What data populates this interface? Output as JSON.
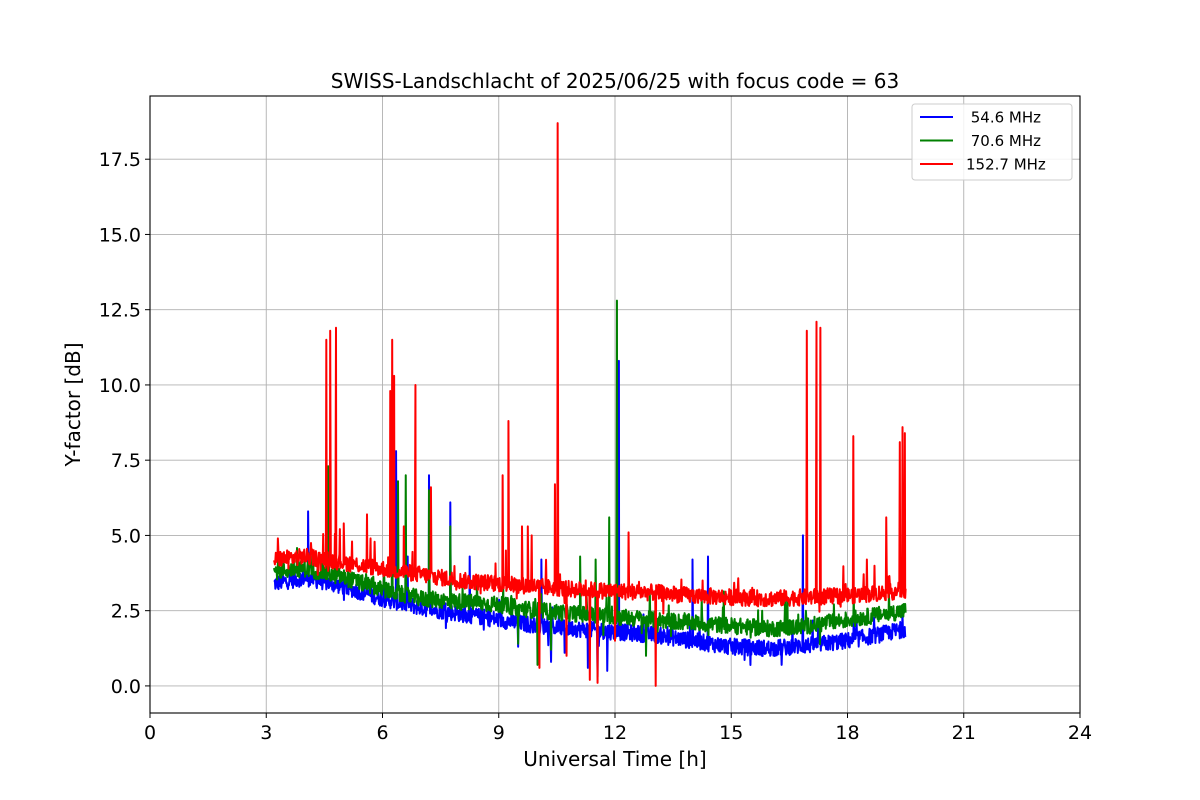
{
  "chart_data": {
    "type": "line",
    "title": "SWISS-Landschlacht of 2025/06/25 with focus code = 63",
    "xlabel": "Universal Time [h]",
    "ylabel": "Y-factor [dB]",
    "xlim": [
      0,
      24
    ],
    "ylim": [
      -0.9,
      19.6
    ],
    "xticks": [
      0,
      3,
      6,
      9,
      12,
      15,
      18,
      21,
      24
    ],
    "xtick_labels": [
      "0",
      "3",
      "6",
      "9",
      "12",
      "15",
      "18",
      "21",
      "24"
    ],
    "yticks": [
      0.0,
      2.5,
      5.0,
      7.5,
      10.0,
      12.5,
      15.0,
      17.5
    ],
    "ytick_labels": [
      "0.0",
      "2.5",
      "5.0",
      "7.5",
      "10.0",
      "12.5",
      "15.0",
      "17.5"
    ],
    "grid": true,
    "legend_position": "top-right",
    "series": [
      {
        "name": " 54.6 MHz",
        "color": "#0000ff",
        "baseline": [
          [
            3.2,
            3.4
          ],
          [
            4.0,
            3.6
          ],
          [
            5.0,
            3.3
          ],
          [
            6.0,
            2.9
          ],
          [
            7.0,
            2.6
          ],
          [
            8.0,
            2.4
          ],
          [
            9.0,
            2.2
          ],
          [
            10.0,
            2.0
          ],
          [
            11.0,
            1.9
          ],
          [
            12.0,
            1.8
          ],
          [
            13.0,
            1.7
          ],
          [
            14.0,
            1.5
          ],
          [
            15.0,
            1.3
          ],
          [
            16.0,
            1.25
          ],
          [
            17.0,
            1.35
          ],
          [
            18.0,
            1.5
          ],
          [
            19.0,
            1.75
          ],
          [
            19.5,
            1.9
          ]
        ],
        "spikes": [
          [
            4.08,
            5.8
          ],
          [
            6.35,
            7.8
          ],
          [
            6.65,
            4.3
          ],
          [
            7.2,
            7.0
          ],
          [
            7.75,
            6.1
          ],
          [
            8.25,
            4.3
          ],
          [
            9.5,
            1.3
          ],
          [
            10.1,
            4.2
          ],
          [
            10.35,
            0.8
          ],
          [
            10.7,
            1.1
          ],
          [
            11.3,
            0.6
          ],
          [
            11.55,
            0.3
          ],
          [
            11.8,
            0.5
          ],
          [
            12.1,
            10.8
          ],
          [
            14.0,
            4.2
          ],
          [
            14.4,
            4.3
          ],
          [
            16.3,
            0.7
          ],
          [
            16.85,
            5.0
          ]
        ]
      },
      {
        "name": " 70.6 MHz",
        "color": "#008000",
        "baseline": [
          [
            3.2,
            3.8
          ],
          [
            4.0,
            3.9
          ],
          [
            5.0,
            3.6
          ],
          [
            6.0,
            3.2
          ],
          [
            7.0,
            2.9
          ],
          [
            8.0,
            2.8
          ],
          [
            9.0,
            2.7
          ],
          [
            10.0,
            2.5
          ],
          [
            11.0,
            2.4
          ],
          [
            12.0,
            2.3
          ],
          [
            13.0,
            2.2
          ],
          [
            14.0,
            2.1
          ],
          [
            15.0,
            2.0
          ],
          [
            16.0,
            1.9
          ],
          [
            17.0,
            2.0
          ],
          [
            18.0,
            2.2
          ],
          [
            19.0,
            2.4
          ],
          [
            19.5,
            2.5
          ]
        ],
        "spikes": [
          [
            4.6,
            7.3
          ],
          [
            6.25,
            5.9
          ],
          [
            6.4,
            6.8
          ],
          [
            6.6,
            7.0
          ],
          [
            7.2,
            6.5
          ],
          [
            7.75,
            5.3
          ],
          [
            9.5,
            1.4
          ],
          [
            10.0,
            0.7
          ],
          [
            10.35,
            1.2
          ],
          [
            11.1,
            4.3
          ],
          [
            11.5,
            4.2
          ],
          [
            11.85,
            5.6
          ],
          [
            12.05,
            12.8
          ],
          [
            12.8,
            1.0
          ],
          [
            13.1,
            1.8
          ],
          [
            15.5,
            1.6
          ],
          [
            16.5,
            1.7
          ]
        ]
      },
      {
        "name": "152.7 MHz",
        "color": "#ff0000",
        "baseline": [
          [
            3.2,
            4.2
          ],
          [
            4.0,
            4.3
          ],
          [
            5.0,
            4.1
          ],
          [
            6.0,
            3.9
          ],
          [
            7.0,
            3.7
          ],
          [
            8.0,
            3.5
          ],
          [
            9.0,
            3.4
          ],
          [
            10.0,
            3.3
          ],
          [
            11.0,
            3.2
          ],
          [
            12.0,
            3.15
          ],
          [
            13.0,
            3.1
          ],
          [
            14.0,
            3.0
          ],
          [
            15.0,
            2.95
          ],
          [
            16.0,
            2.9
          ],
          [
            17.0,
            2.95
          ],
          [
            18.0,
            3.0
          ],
          [
            19.0,
            3.1
          ],
          [
            19.5,
            3.2
          ]
        ],
        "spikes": [
          [
            3.3,
            4.9
          ],
          [
            4.55,
            11.5
          ],
          [
            4.65,
            11.8
          ],
          [
            4.8,
            11.9
          ],
          [
            5.0,
            5.4
          ],
          [
            5.6,
            5.7
          ],
          [
            6.2,
            9.8
          ],
          [
            6.25,
            11.5
          ],
          [
            6.3,
            10.3
          ],
          [
            6.55,
            5.3
          ],
          [
            6.85,
            10.0
          ],
          [
            7.25,
            6.6
          ],
          [
            9.1,
            7.0
          ],
          [
            9.25,
            8.8
          ],
          [
            9.6,
            5.3
          ],
          [
            9.75,
            5.3
          ],
          [
            9.85,
            5.0
          ],
          [
            10.05,
            0.6
          ],
          [
            10.45,
            6.7
          ],
          [
            10.52,
            18.7
          ],
          [
            10.75,
            1.0
          ],
          [
            11.35,
            0.2
          ],
          [
            11.55,
            0.1
          ],
          [
            12.0,
            1.5
          ],
          [
            12.35,
            5.1
          ],
          [
            13.05,
            0.0
          ],
          [
            16.95,
            11.8
          ],
          [
            17.2,
            12.1
          ],
          [
            17.3,
            11.9
          ],
          [
            18.15,
            8.3
          ],
          [
            18.5,
            4.2
          ],
          [
            19.0,
            5.6
          ],
          [
            19.35,
            8.1
          ],
          [
            19.42,
            8.6
          ],
          [
            19.48,
            8.4
          ]
        ]
      }
    ]
  }
}
